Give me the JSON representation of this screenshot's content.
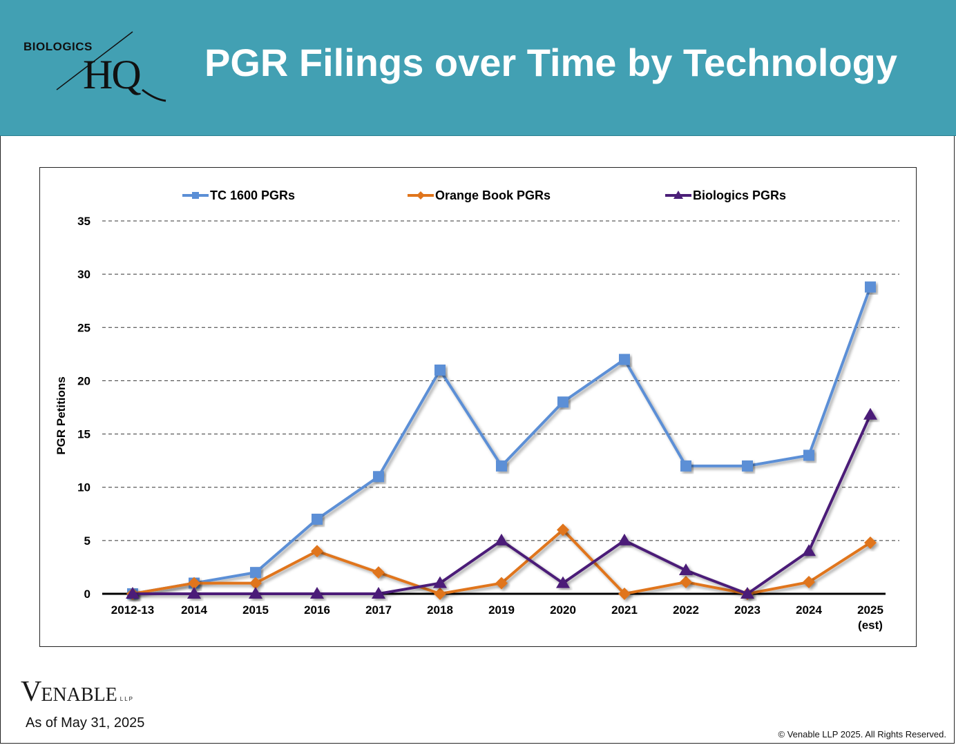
{
  "header": {
    "logo_top": "BIOLOGICS",
    "logo_main": "HQ",
    "title": "PGR Filings over Time by Technology"
  },
  "footer": {
    "brand_initial": "V",
    "brand_rest": "ENABLE",
    "brand_suffix": "LLP",
    "as_of": "As of May 31, 2025",
    "copyright": "© Venable LLP 2025. All Rights Reserved."
  },
  "colors": {
    "header_bg": "#42a0b3",
    "tc1600": "#5b8fd6",
    "orange_book": "#e0751c",
    "biologics": "#4b1f78"
  },
  "chart_data": {
    "type": "line",
    "title": "",
    "xlabel": "",
    "ylabel": "PGR Petitions",
    "ylim": [
      0,
      35
    ],
    "yticks": [
      0,
      5,
      10,
      15,
      20,
      25,
      30,
      35
    ],
    "grid": true,
    "legend_position": "top",
    "categories": [
      "2012-13",
      "2014",
      "2015",
      "2016",
      "2017",
      "2018",
      "2019",
      "2020",
      "2021",
      "2022",
      "2023",
      "2024",
      "2025|(est)"
    ],
    "series": [
      {
        "name": "TC 1600 PGRs",
        "marker": "square",
        "color": "#5b8fd6",
        "values": [
          0,
          1,
          2,
          7,
          11,
          21,
          12,
          18,
          22,
          12,
          12,
          13,
          28.8
        ]
      },
      {
        "name": "Orange Book PGRs",
        "marker": "diamond",
        "color": "#e0751c",
        "values": [
          0,
          1,
          1,
          4,
          2,
          0,
          1,
          6,
          0,
          1.1,
          0,
          1.1,
          4.8
        ]
      },
      {
        "name": "Biologics PGRs",
        "marker": "triangle",
        "color": "#4b1f78",
        "values": [
          0,
          0,
          0,
          0,
          0,
          1,
          5,
          1,
          5,
          2.2,
          0,
          4,
          16.8
        ]
      }
    ]
  }
}
